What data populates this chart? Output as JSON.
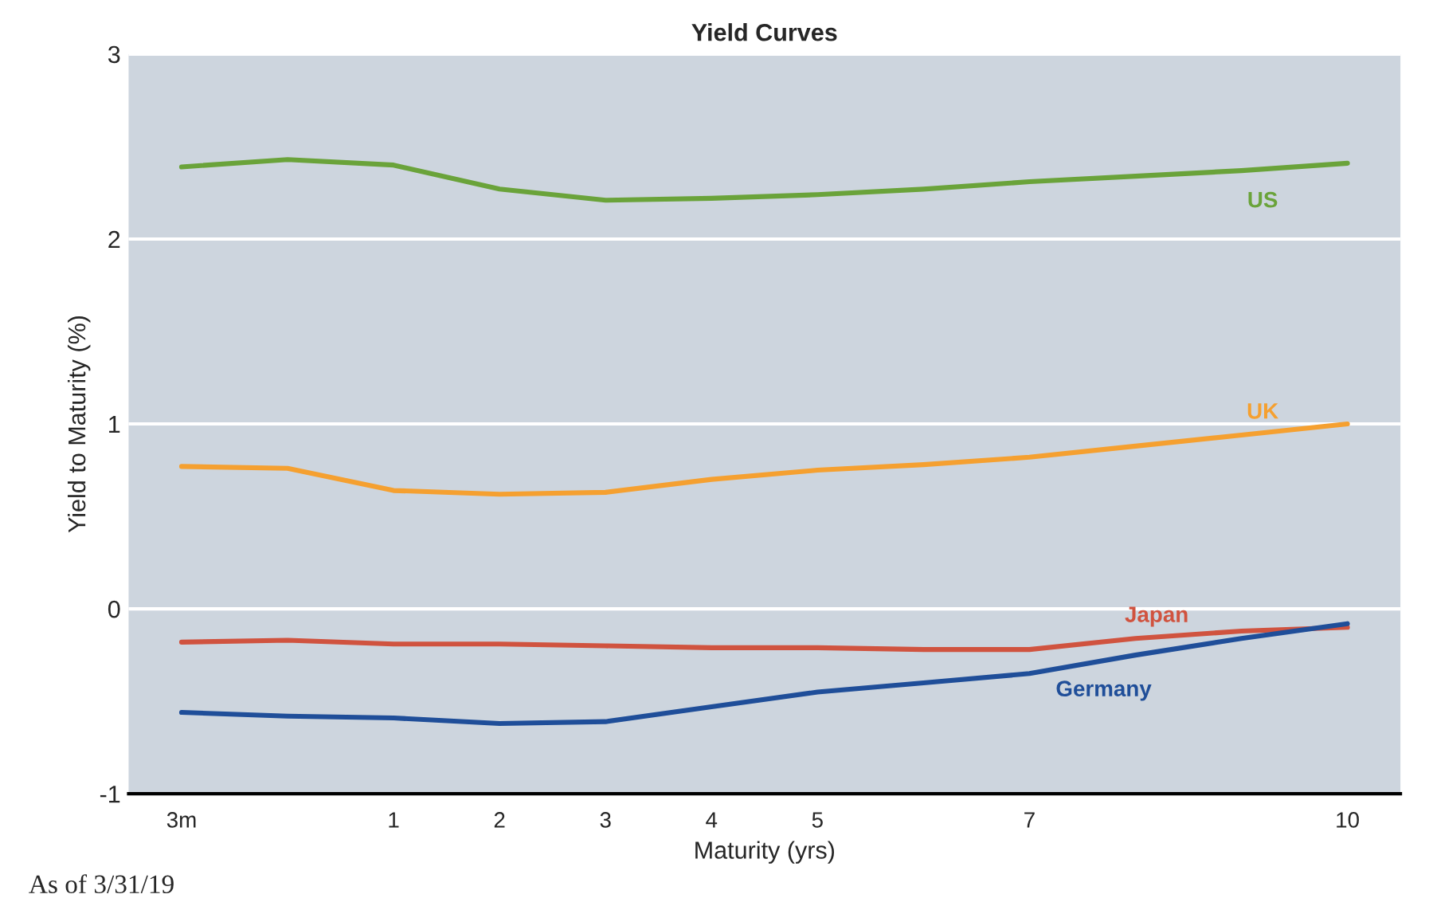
{
  "chart_data": {
    "type": "line",
    "title": "Yield Curves",
    "xlabel": "Maturity (yrs)",
    "ylabel": "Yield to Maturity (%)",
    "categories": [
      "3m",
      null,
      "1",
      "2",
      "3",
      "4",
      "5",
      null,
      "7",
      null,
      null,
      "10"
    ],
    "series": [
      {
        "name": "US",
        "color": "#6aa33a",
        "values": [
          2.39,
          2.43,
          2.4,
          2.27,
          2.21,
          2.22,
          2.24,
          2.27,
          2.31,
          2.34,
          2.37,
          2.41
        ]
      },
      {
        "name": "UK",
        "color": "#f5a030",
        "values": [
          0.77,
          0.76,
          0.64,
          0.62,
          0.63,
          0.7,
          0.75,
          0.78,
          0.82,
          0.88,
          0.94,
          1.0
        ]
      },
      {
        "name": "Japan",
        "color": "#d0533f",
        "values": [
          -0.18,
          -0.17,
          -0.19,
          -0.19,
          -0.2,
          -0.21,
          -0.21,
          -0.22,
          -0.22,
          -0.16,
          -0.12,
          -0.1
        ]
      },
      {
        "name": "Germany",
        "color": "#1f4e99",
        "values": [
          -0.56,
          -0.58,
          -0.59,
          -0.62,
          -0.61,
          -0.53,
          -0.45,
          -0.4,
          -0.35,
          -0.25,
          -0.16,
          -0.08
        ]
      }
    ],
    "ylim": [
      -1,
      3
    ],
    "yticks": [
      -1,
      0,
      1,
      2,
      3
    ],
    "grid": "y",
    "legend": false,
    "marker": "none",
    "line_style": "solid",
    "annotations": [
      "As of 3/31/19"
    ]
  }
}
